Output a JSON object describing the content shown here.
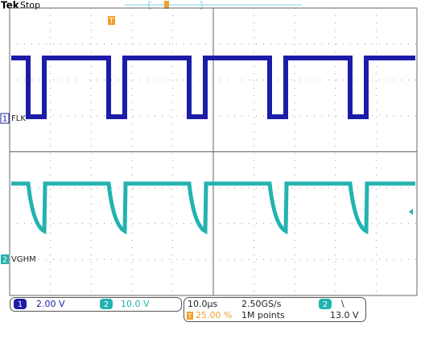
{
  "header": {
    "brand": "Tek",
    "status": "Stop"
  },
  "channels": [
    {
      "number": "1",
      "label": "FLK",
      "scale": "2.00 V"
    },
    {
      "number": "2",
      "label": "VGHM",
      "scale": "10.0 V"
    }
  ],
  "timebase": {
    "scale": "10.0µs",
    "sample_rate": "2.50GS/s",
    "trigger_position": "25.00 %",
    "record_length": "1M points"
  },
  "trigger": {
    "marker": "T",
    "source": "2",
    "slope": "\\",
    "level": "13.0 V"
  }
}
